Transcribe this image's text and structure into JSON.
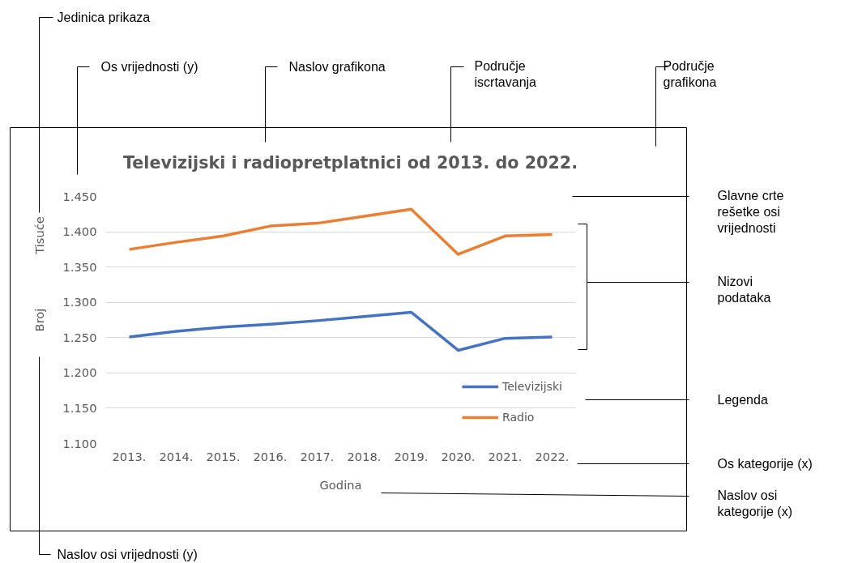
{
  "chart_data": {
    "type": "line",
    "title": "Televizijski i radiopretplatnici od 2013. do 2022.",
    "xlabel": "Godina",
    "ylabel": "Broj",
    "categories": [
      "2013.",
      "2014.",
      "2015.",
      "2016.",
      "2017.",
      "2018.",
      "2019.",
      "2020.",
      "2021.",
      "2022."
    ],
    "series": [
      {
        "name": "Televizijski",
        "color": "#4472c4",
        "values": [
          1.251,
          1.259,
          1.265,
          1.269,
          1.274,
          1.28,
          1.286,
          1.232,
          1.249,
          1.251
        ]
      },
      {
        "name": "Radio",
        "color": "#ed7d31",
        "values": [
          1.375,
          1.385,
          1.394,
          1.408,
          1.412,
          1.422,
          1.432,
          1.368,
          1.394,
          1.396
        ]
      }
    ],
    "ylim": [
      1.1,
      1.45
    ],
    "yticks": [
      {
        "value": 1.1,
        "label": "1.100"
      },
      {
        "value": 1.15,
        "label": "1.150"
      },
      {
        "value": 1.2,
        "label": "1.200"
      },
      {
        "value": 1.25,
        "label": "1.250"
      },
      {
        "value": 1.3,
        "label": "1.300"
      },
      {
        "value": 1.35,
        "label": "1.350"
      },
      {
        "value": 1.4,
        "label": "1.400"
      },
      {
        "value": 1.45,
        "label": "1.450"
      }
    ],
    "grid": "y",
    "legend": "bottom right",
    "marker": "none",
    "line_style": "solid",
    "annotations": [
      "Tisuće",
      "Jedinica prikaza",
      "Os vrijednosti (y)",
      "Naslov grafikona",
      "Područje iscrtavanja",
      "Područje grafikona",
      "Glavne crte rešetke osi vrijednosti",
      "Nizovi podataka",
      "Legenda",
      "Os kategorije (x)",
      "Naslov osi kategorije (x)",
      "Naslov osi vrijednosti (y)"
    ]
  }
}
